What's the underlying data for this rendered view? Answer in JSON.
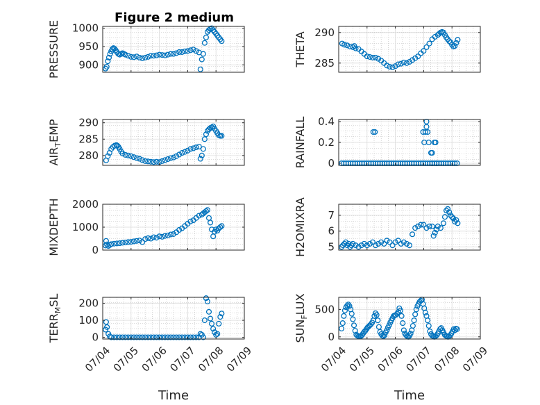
{
  "figure_title": "Figure 2 medium",
  "styles": {
    "marker_color": "#0072BD",
    "axis_color": "#262626",
    "grid_color": "#b8b8b8"
  },
  "chart_data": [
    {
      "type": "scatter",
      "ylabel": "PRESSURE",
      "xlabel": "",
      "xlim": [
        0,
        5
      ],
      "xtick_labels": [],
      "ylim": [
        880,
        1005
      ],
      "yticks": [
        900,
        950,
        1000
      ],
      "grid": true,
      "x": [
        0.1,
        0.14,
        0.18,
        0.22,
        0.26,
        0.3,
        0.34,
        0.38,
        0.42,
        0.46,
        0.5,
        0.55,
        0.6,
        0.65,
        0.7,
        0.75,
        0.8,
        0.9,
        1.0,
        1.1,
        1.2,
        1.3,
        1.4,
        1.5,
        1.6,
        1.7,
        1.8,
        1.9,
        2.0,
        2.1,
        2.2,
        2.3,
        2.4,
        2.5,
        2.6,
        2.7,
        2.8,
        2.9,
        3.0,
        3.1,
        3.2,
        3.3,
        3.4,
        3.45,
        3.5,
        3.55,
        3.6,
        3.65,
        3.7,
        3.75,
        3.8,
        3.85,
        3.9,
        3.95,
        4.0,
        4.05,
        4.1,
        4.15,
        4.2
      ],
      "y": [
        890,
        895,
        910,
        920,
        930,
        937,
        943,
        946,
        944,
        940,
        935,
        930,
        928,
        930,
        932,
        930,
        928,
        925,
        922,
        921,
        923,
        920,
        918,
        920,
        922,
        925,
        925,
        926,
        928,
        927,
        926,
        928,
        930,
        930,
        932,
        935,
        935,
        937,
        938,
        940,
        942,
        938,
        934,
        888,
        915,
        930,
        960,
        975,
        990,
        995,
        998,
        1000,
        995,
        990,
        985,
        980,
        975,
        970,
        965
      ]
    },
    {
      "type": "scatter",
      "ylabel": "THETA",
      "xlabel": "",
      "xlim": [
        0,
        5
      ],
      "xtick_labels": [],
      "ylim": [
        283.5,
        291
      ],
      "yticks": [
        285,
        290
      ],
      "grid": true,
      "x": [
        0.12,
        0.2,
        0.3,
        0.4,
        0.5,
        0.55,
        0.6,
        0.7,
        0.8,
        0.9,
        1.0,
        1.1,
        1.2,
        1.3,
        1.4,
        1.5,
        1.6,
        1.7,
        1.8,
        1.9,
        2.0,
        2.1,
        2.2,
        2.3,
        2.4,
        2.5,
        2.6,
        2.7,
        2.8,
        2.9,
        3.0,
        3.1,
        3.2,
        3.3,
        3.4,
        3.5,
        3.55,
        3.6,
        3.65,
        3.7,
        3.75,
        3.8,
        3.85,
        3.9,
        3.95,
        4.0,
        4.05,
        4.1,
        4.15,
        4.2
      ],
      "y": [
        288.2,
        288.0,
        287.9,
        287.7,
        287.6,
        287.8,
        287.4,
        287.3,
        286.9,
        286.5,
        286.1,
        286.0,
        285.9,
        285.9,
        285.7,
        285.4,
        285.0,
        284.6,
        284.4,
        284.3,
        284.5,
        284.8,
        284.9,
        285.1,
        285.0,
        285.2,
        285.5,
        285.8,
        286.1,
        286.6,
        287.0,
        287.6,
        288.2,
        288.9,
        289.3,
        289.6,
        289.8,
        290.0,
        290.1,
        290.0,
        289.6,
        289.2,
        288.9,
        288.6,
        288.4,
        288.0,
        287.7,
        287.8,
        288.3,
        288.8
      ]
    },
    {
      "type": "scatter",
      "ylabel": "AIR_TEMP",
      "xlabel": "",
      "xlim": [
        0,
        5
      ],
      "xtick_labels": [],
      "ylim": [
        277,
        291
      ],
      "yticks": [
        280,
        285,
        290
      ],
      "grid": true,
      "x": [
        0.12,
        0.18,
        0.24,
        0.3,
        0.36,
        0.42,
        0.48,
        0.52,
        0.56,
        0.6,
        0.65,
        0.7,
        0.8,
        0.9,
        1.0,
        1.1,
        1.2,
        1.3,
        1.4,
        1.5,
        1.6,
        1.7,
        1.8,
        1.9,
        2.0,
        2.1,
        2.2,
        2.3,
        2.4,
        2.5,
        2.6,
        2.7,
        2.8,
        2.9,
        3.0,
        3.1,
        3.2,
        3.3,
        3.4,
        3.45,
        3.5,
        3.55,
        3.6,
        3.65,
        3.7,
        3.75,
        3.8,
        3.85,
        3.9,
        3.95,
        4.0,
        4.05,
        4.1,
        4.15,
        4.2
      ],
      "y": [
        278.5,
        279.8,
        280.8,
        282.0,
        282.6,
        283.0,
        283.2,
        283.0,
        282.6,
        282.0,
        281.2,
        280.6,
        280.2,
        280.0,
        279.8,
        279.5,
        279.2,
        279.0,
        278.6,
        278.3,
        278.2,
        278.1,
        278.0,
        278.1,
        278.0,
        278.3,
        278.6,
        278.9,
        279.2,
        279.4,
        279.8,
        280.3,
        280.8,
        281.1,
        281.5,
        282.0,
        282.2,
        282.5,
        282.7,
        279.0,
        280.0,
        282.0,
        285.0,
        286.5,
        287.5,
        288.0,
        288.4,
        288.6,
        288.9,
        288.2,
        287.5,
        286.8,
        286.2,
        286.0,
        286.0
      ]
    },
    {
      "type": "scatter",
      "ylabel": "RAINFALL",
      "xlabel": "",
      "xlim": [
        0,
        5
      ],
      "xtick_labels": [],
      "ylim": [
        -0.02,
        0.42
      ],
      "yticks": [
        0,
        0.2,
        0.4
      ],
      "grid": true,
      "x": [
        0.1,
        0.18,
        0.26,
        0.34,
        0.42,
        0.5,
        0.58,
        0.66,
        0.74,
        0.82,
        0.9,
        0.98,
        1.06,
        1.14,
        1.22,
        1.3,
        1.38,
        1.46,
        1.54,
        1.62,
        1.7,
        1.78,
        1.86,
        1.94,
        2.02,
        2.1,
        2.18,
        2.26,
        2.34,
        2.42,
        2.5,
        2.58,
        2.66,
        2.74,
        2.82,
        2.9,
        2.98,
        3.06,
        3.14,
        3.22,
        3.3,
        3.38,
        3.46,
        3.54,
        3.62,
        3.7,
        3.78,
        3.86,
        3.94,
        4.02,
        4.1,
        4.18,
        1.22,
        1.28,
        2.98,
        3.02,
        3.06,
        3.1,
        3.14,
        3.18,
        3.26,
        3.3,
        3.38,
        3.42,
        3.46,
        3.1,
        3.3
      ],
      "y": [
        0,
        0,
        0,
        0,
        0,
        0,
        0,
        0,
        0,
        0,
        0,
        0,
        0,
        0,
        0,
        0,
        0,
        0,
        0,
        0,
        0,
        0,
        0,
        0,
        0,
        0,
        0,
        0,
        0,
        0,
        0,
        0,
        0,
        0,
        0,
        0,
        0,
        0,
        0,
        0,
        0,
        0,
        0,
        0,
        0,
        0,
        0,
        0,
        0,
        0,
        0,
        0,
        0.3,
        0.3,
        0.3,
        0.2,
        0.3,
        0.4,
        0.3,
        0.2,
        0.1,
        0.1,
        0.2,
        0.2,
        0,
        0.35,
        0
      ]
    },
    {
      "type": "scatter",
      "ylabel": "MIXDEPTH",
      "xlabel": "",
      "xlim": [
        0,
        5
      ],
      "xtick_labels": [],
      "ylim": [
        0,
        2000
      ],
      "yticks": [
        0,
        1000,
        2000
      ],
      "grid": true,
      "x": [
        0.1,
        0.12,
        0.15,
        0.2,
        0.25,
        0.3,
        0.4,
        0.5,
        0.6,
        0.7,
        0.8,
        0.9,
        1.0,
        1.1,
        1.2,
        1.3,
        1.4,
        1.5,
        1.6,
        1.7,
        1.8,
        1.9,
        2.0,
        2.1,
        2.2,
        2.3,
        2.4,
        2.5,
        2.6,
        2.7,
        2.8,
        2.9,
        3.0,
        3.1,
        3.2,
        3.3,
        3.4,
        3.5,
        3.55,
        3.6,
        3.65,
        3.7,
        3.75,
        3.8,
        3.85,
        3.9,
        3.95,
        4.0,
        4.05,
        4.1,
        4.15,
        4.2
      ],
      "y": [
        200,
        400,
        250,
        180,
        220,
        260,
        280,
        290,
        300,
        320,
        330,
        350,
        360,
        380,
        400,
        420,
        350,
        480,
        520,
        500,
        560,
        540,
        600,
        580,
        620,
        640,
        680,
        700,
        780,
        880,
        950,
        1050,
        1150,
        1250,
        1300,
        1400,
        1500,
        1550,
        1600,
        1650,
        1700,
        1750,
        1400,
        1200,
        900,
        600,
        800,
        900,
        850,
        950,
        1000,
        1050
      ]
    },
    {
      "type": "scatter",
      "ylabel": "H2OMIXRA",
      "xlabel": "",
      "xlim": [
        0,
        5
      ],
      "xtick_labels": [],
      "ylim": [
        4.8,
        7.7
      ],
      "yticks": [
        5,
        6,
        7
      ],
      "grid": true,
      "x": [
        0.1,
        0.15,
        0.2,
        0.25,
        0.3,
        0.35,
        0.4,
        0.45,
        0.5,
        0.6,
        0.7,
        0.8,
        0.9,
        1.0,
        1.1,
        1.2,
        1.3,
        1.4,
        1.5,
        1.6,
        1.7,
        1.8,
        1.9,
        2.0,
        2.1,
        2.2,
        2.3,
        2.4,
        2.5,
        2.6,
        2.7,
        2.8,
        2.9,
        3.0,
        3.1,
        3.2,
        3.3,
        3.35,
        3.4,
        3.45,
        3.5,
        3.6,
        3.7,
        3.75,
        3.8,
        3.85,
        3.9,
        3.95,
        4.0,
        4.05,
        4.1,
        4.15,
        4.2
      ],
      "y": [
        5.0,
        5.1,
        5.2,
        5.3,
        5.1,
        5.2,
        5.0,
        5.1,
        5.2,
        5.1,
        5.0,
        5.1,
        5.2,
        5.1,
        5.2,
        5.3,
        5.1,
        5.2,
        5.3,
        5.2,
        5.4,
        5.3,
        5.1,
        5.3,
        5.4,
        5.2,
        5.3,
        5.2,
        5.1,
        5.8,
        6.2,
        6.3,
        6.4,
        6.4,
        6.2,
        6.3,
        6.3,
        5.7,
        5.9,
        6.1,
        6.3,
        6.2,
        6.5,
        6.9,
        7.3,
        7.4,
        7.2,
        7.0,
        6.9,
        6.8,
        6.6,
        6.7,
        6.5
      ]
    },
    {
      "type": "scatter",
      "ylabel": "TERR_MSL",
      "xlabel": "Time",
      "xlim": [
        0,
        5
      ],
      "xtick_labels": [
        "07/04",
        "07/05",
        "07/06",
        "07/07",
        "07/08",
        "07/09"
      ],
      "ylim": [
        -10,
        235
      ],
      "yticks": [
        0,
        100,
        200
      ],
      "grid": true,
      "x": [
        0.1,
        0.12,
        0.15,
        0.2,
        0.25,
        0.3,
        0.4,
        0.5,
        0.6,
        0.7,
        0.8,
        0.9,
        1.0,
        1.1,
        1.2,
        1.3,
        1.4,
        1.5,
        1.6,
        1.7,
        1.8,
        1.9,
        2.0,
        2.1,
        2.2,
        2.3,
        2.4,
        2.5,
        2.6,
        2.7,
        2.8,
        2.9,
        3.0,
        3.1,
        3.2,
        3.3,
        3.4,
        3.45,
        3.5,
        3.55,
        3.6,
        3.65,
        3.7,
        3.75,
        3.8,
        3.85,
        3.9,
        3.95,
        4.0,
        4.05,
        4.1,
        4.15,
        4.2
      ],
      "y": [
        45,
        90,
        60,
        20,
        5,
        0,
        0,
        0,
        0,
        0,
        0,
        0,
        0,
        0,
        0,
        0,
        0,
        0,
        0,
        0,
        0,
        0,
        0,
        0,
        0,
        0,
        0,
        0,
        0,
        0,
        0,
        0,
        0,
        0,
        0,
        0,
        0,
        20,
        15,
        0,
        100,
        230,
        210,
        150,
        110,
        80,
        50,
        30,
        15,
        20,
        80,
        120,
        140
      ]
    },
    {
      "type": "scatter",
      "ylabel": "SUN_FLUX",
      "xlabel": "Time",
      "xlim": [
        0,
        5
      ],
      "xtick_labels": [
        "07/04",
        "07/05",
        "07/06",
        "07/07",
        "07/08",
        "07/09"
      ],
      "ylim": [
        -40,
        720
      ],
      "yticks": [
        0,
        500
      ],
      "grid": true,
      "x": [
        0.1,
        0.14,
        0.18,
        0.22,
        0.26,
        0.3,
        0.34,
        0.38,
        0.42,
        0.46,
        0.5,
        0.54,
        0.58,
        0.62,
        0.66,
        0.7,
        0.74,
        0.78,
        0.82,
        0.86,
        0.9,
        0.94,
        0.98,
        1.02,
        1.06,
        1.1,
        1.14,
        1.18,
        1.22,
        1.26,
        1.3,
        1.34,
        1.38,
        1.42,
        1.46,
        1.5,
        1.54,
        1.58,
        1.62,
        1.66,
        1.7,
        1.74,
        1.78,
        1.82,
        1.86,
        1.9,
        1.94,
        1.98,
        2.02,
        2.06,
        2.1,
        2.14,
        2.18,
        2.22,
        2.26,
        2.3,
        2.34,
        2.38,
        2.42,
        2.46,
        2.5,
        2.54,
        2.58,
        2.62,
        2.66,
        2.7,
        2.74,
        2.78,
        2.82,
        2.86,
        2.9,
        2.94,
        2.98,
        3.02,
        3.06,
        3.1,
        3.14,
        3.18,
        3.22,
        3.26,
        3.3,
        3.34,
        3.38,
        3.42,
        3.46,
        3.5,
        3.54,
        3.58,
        3.62,
        3.66,
        3.7,
        3.74,
        3.78,
        3.82,
        3.86,
        3.9,
        3.94,
        3.98,
        4.02,
        4.06,
        4.1,
        4.14,
        4.18
      ],
      "y": [
        150,
        250,
        380,
        480,
        540,
        570,
        590,
        560,
        500,
        420,
        320,
        210,
        110,
        40,
        20,
        10,
        5,
        10,
        30,
        60,
        90,
        110,
        140,
        170,
        190,
        210,
        230,
        260,
        300,
        380,
        430,
        400,
        300,
        180,
        90,
        50,
        20,
        10,
        30,
        80,
        120,
        170,
        210,
        260,
        300,
        340,
        380,
        390,
        400,
        420,
        450,
        520,
        480,
        380,
        250,
        120,
        60,
        30,
        10,
        0,
        20,
        60,
        120,
        200,
        300,
        410,
        500,
        560,
        600,
        640,
        660,
        680,
        600,
        520,
        440,
        380,
        300,
        200,
        100,
        50,
        20,
        10,
        0,
        10,
        30,
        60,
        100,
        140,
        160,
        120,
        80,
        40,
        20,
        10,
        0,
        10,
        30,
        60,
        100,
        140,
        120,
        150,
        140
      ]
    }
  ]
}
